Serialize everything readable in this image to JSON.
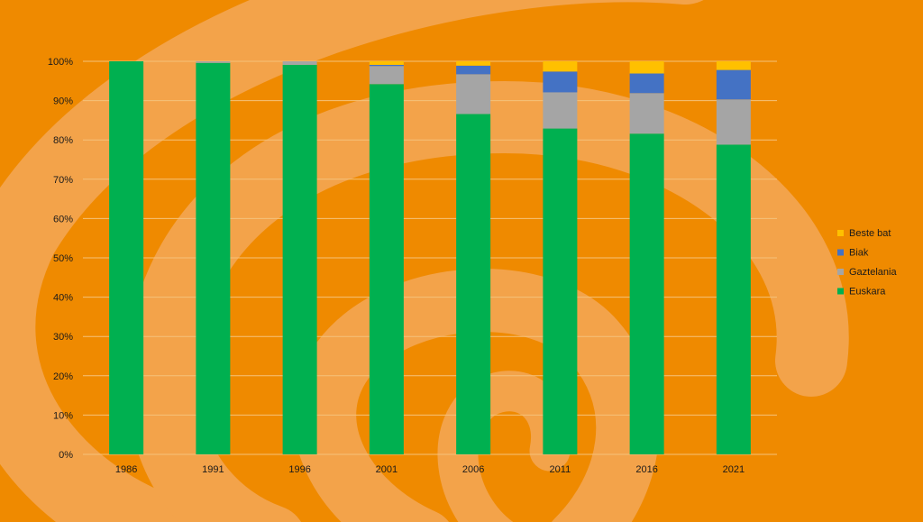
{
  "chart_data": {
    "type": "bar",
    "stacked": true,
    "percent_stacked": true,
    "categories": [
      "1986",
      "1991",
      "1996",
      "2001",
      "2006",
      "2011",
      "2016",
      "2021"
    ],
    "series": [
      {
        "name": "Euskara",
        "color": "#00b050",
        "values": [
          100,
          99.6,
          99.1,
          94.2,
          86.6,
          82.9,
          81.6,
          78.8
        ]
      },
      {
        "name": "Gaztelania",
        "color": "#a5a5a5",
        "values": [
          0,
          0.4,
          0.9,
          4.6,
          10.1,
          9.2,
          10.3,
          11.5
        ]
      },
      {
        "name": "Biak",
        "color": "#4472c4",
        "values": [
          0,
          0,
          0,
          0.3,
          2.2,
          5.3,
          5.0,
          7.5
        ]
      },
      {
        "name": "Beste bat",
        "color": "#ffc000",
        "values": [
          0,
          0,
          0,
          0.9,
          1.1,
          2.6,
          3.1,
          2.2
        ]
      }
    ],
    "ylim": [
      0,
      100
    ],
    "y_ticks": [
      "0%",
      "10%",
      "20%",
      "30%",
      "40%",
      "50%",
      "60%",
      "70%",
      "80%",
      "90%",
      "100%"
    ],
    "grid": true,
    "legend_position": "right",
    "title": "",
    "xlabel": "",
    "ylabel": ""
  },
  "background": {
    "color": "#ef8a00",
    "swirl_color": "#f3a34a"
  }
}
